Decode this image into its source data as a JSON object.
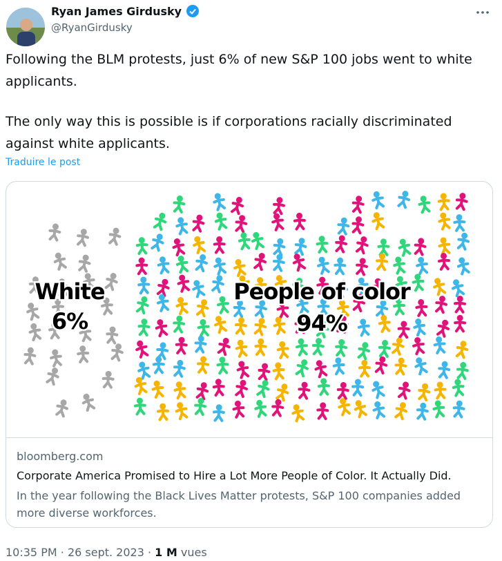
{
  "author": {
    "name": "Ryan James Girdusky",
    "handle": "@RyanGirdusky"
  },
  "post": {
    "paragraphs": [
      "Following the BLM protests, just 6% of new S&P 100 jobs went to white applicants.",
      "The only way this is possible is if corporations racially discriminated against white applicants."
    ],
    "translate": "Traduire le post"
  },
  "card": {
    "image": {
      "groups": [
        {
          "label": "White",
          "value": "6%"
        },
        {
          "label": "People of color",
          "value": "94%"
        }
      ]
    },
    "domain": "bloomberg.com",
    "title": "Corporate America Promised to Hire a Lot More People of Color. It Actually Did.",
    "description": "In the year following the Black Lives Matter protests, S&P 100 companies added more diverse workforces."
  },
  "footer": {
    "time": "10:35 PM",
    "separator": "·",
    "date": "26 sept. 2023",
    "views": "1 M",
    "views_label": "vues"
  }
}
